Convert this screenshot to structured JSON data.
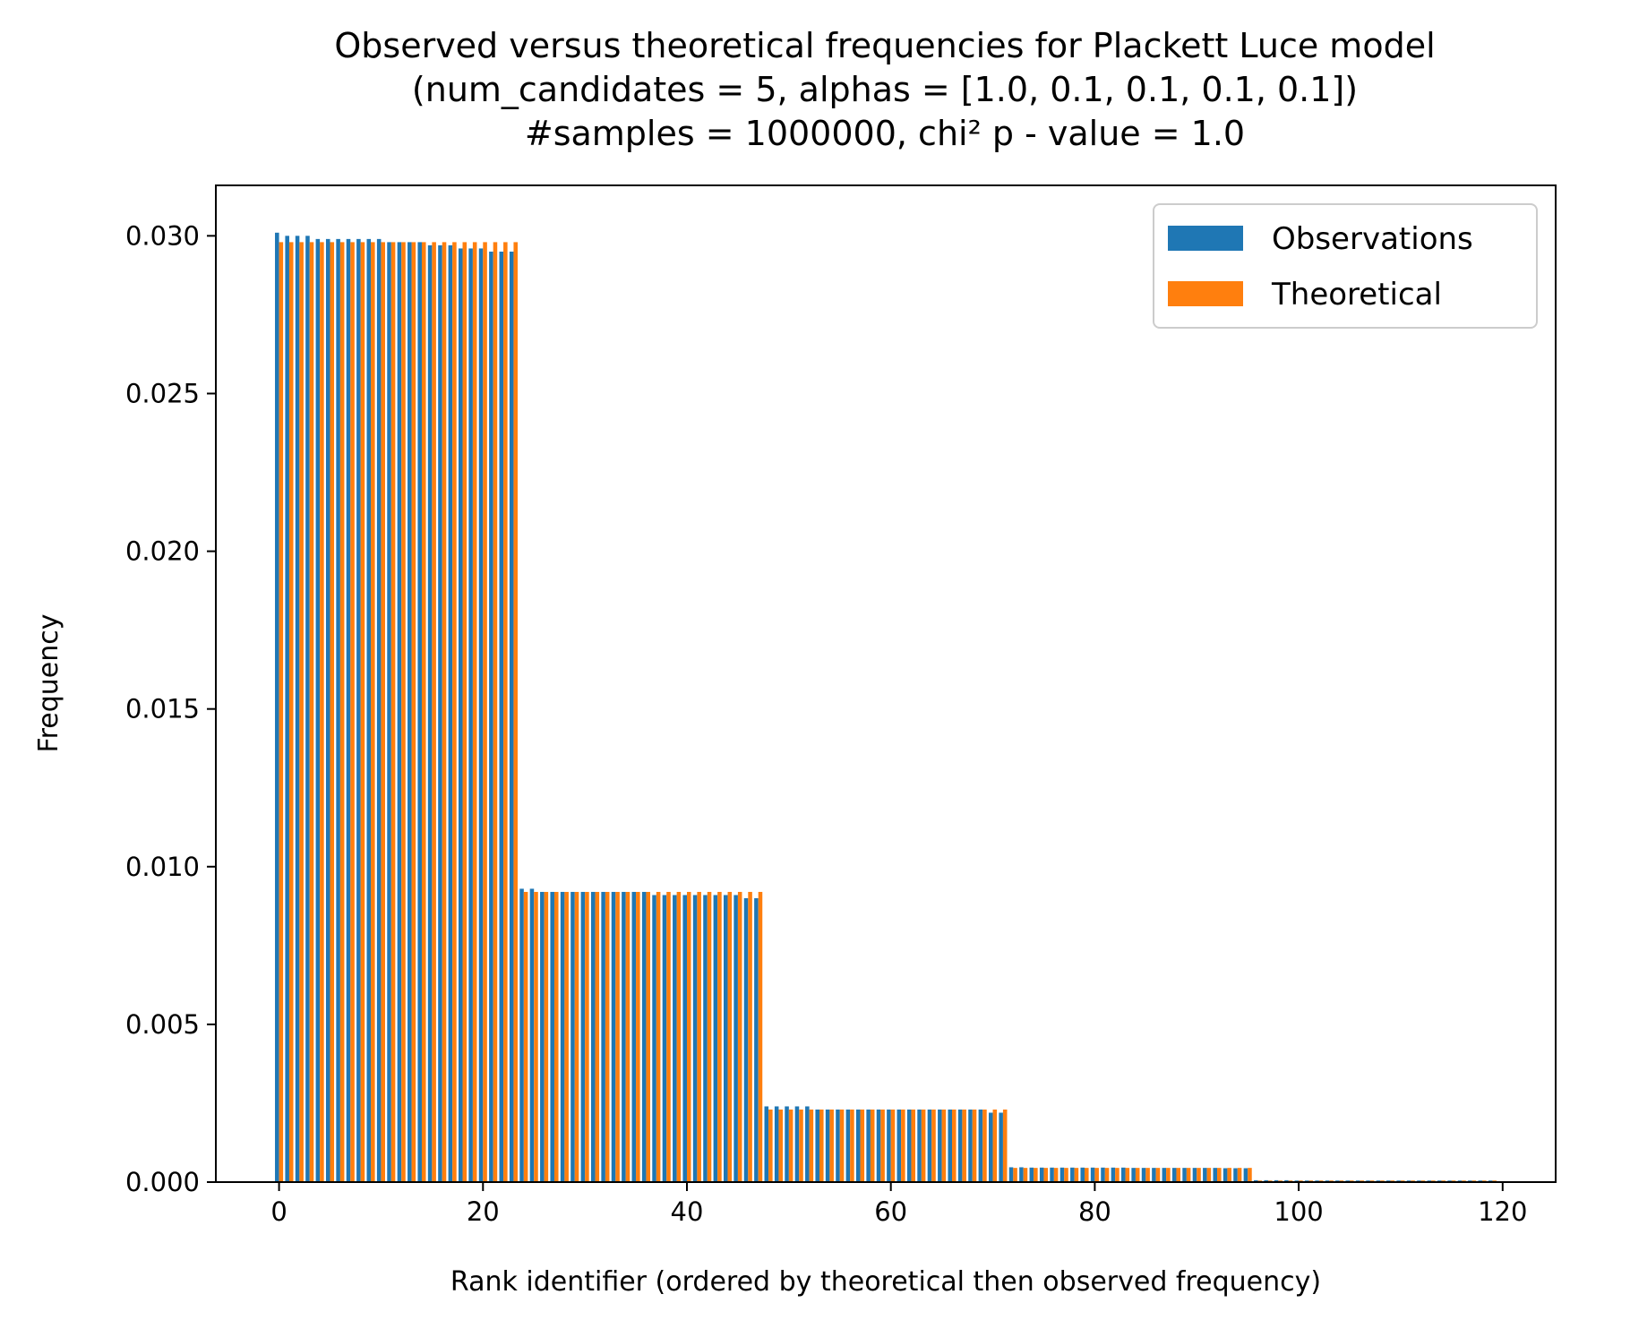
{
  "chart_data": {
    "type": "bar",
    "title_lines": [
      "Observed versus theoretical frequencies for Plackett Luce model",
      "(num_candidates = 5, alphas = [1.0, 0.1, 0.1, 0.1, 0.1])",
      "#samples = 1000000, chi² p - value = 1.0"
    ],
    "xlabel": "Rank identifier (ordered by theoretical then observed frequency)",
    "ylabel": "Frequency",
    "xlim": [
      -6.2,
      125.2
    ],
    "ylim": [
      0,
      0.0316
    ],
    "xticks": [
      0,
      20,
      40,
      60,
      80,
      100,
      120
    ],
    "xtick_labels": [
      "0",
      "20",
      "40",
      "60",
      "80",
      "100",
      "120"
    ],
    "yticks": [
      0.0,
      0.005,
      0.01,
      0.015,
      0.02,
      0.025,
      0.03
    ],
    "ytick_labels": [
      "0.000",
      "0.005",
      "0.010",
      "0.015",
      "0.020",
      "0.025",
      "0.030"
    ],
    "legend_placement": "upper-right",
    "grid": false,
    "bar_width": 0.4,
    "series": [
      {
        "name": "Observations",
        "color": "#1f77b4",
        "offset": -0.2,
        "values": [
          0.0301,
          0.03,
          0.03,
          0.03,
          0.0299,
          0.0299,
          0.0299,
          0.0299,
          0.0299,
          0.0299,
          0.0299,
          0.0298,
          0.0298,
          0.0298,
          0.0298,
          0.0297,
          0.0297,
          0.0297,
          0.0296,
          0.0296,
          0.0296,
          0.0295,
          0.0295,
          0.0295,
          0.0093,
          0.0093,
          0.0092,
          0.0092,
          0.0092,
          0.0092,
          0.0092,
          0.0092,
          0.0092,
          0.0092,
          0.0092,
          0.0092,
          0.0092,
          0.0091,
          0.0091,
          0.0091,
          0.0091,
          0.0091,
          0.0091,
          0.0091,
          0.0091,
          0.0091,
          0.009,
          0.009,
          0.0024,
          0.0024,
          0.0024,
          0.0024,
          0.0024,
          0.0023,
          0.0023,
          0.0023,
          0.0023,
          0.0023,
          0.0023,
          0.0023,
          0.0023,
          0.0023,
          0.0023,
          0.0023,
          0.0023,
          0.0023,
          0.0023,
          0.0023,
          0.0023,
          0.0023,
          0.0022,
          0.0022,
          0.00047,
          0.00047,
          0.00046,
          0.00046,
          0.00046,
          0.00046,
          0.00046,
          0.00046,
          0.00046,
          0.00046,
          0.00046,
          0.00046,
          0.00045,
          0.00045,
          0.00045,
          0.00045,
          0.00045,
          0.00045,
          0.00045,
          0.00045,
          0.00045,
          0.00044,
          0.00044,
          0.00044,
          6e-05,
          6e-05,
          6e-05,
          6e-05,
          5e-05,
          5e-05,
          5e-05,
          5e-05,
          5e-05,
          5e-05,
          5e-05,
          5e-05,
          5e-05,
          5e-05,
          5e-05,
          5e-05,
          5e-05,
          5e-05,
          5e-05,
          5e-05,
          5e-05,
          5e-05,
          5e-05,
          5e-05
        ]
      },
      {
        "name": "Theoretical",
        "color": "#ff7f0e",
        "offset": 0.2,
        "values": [
          0.0298,
          0.0298,
          0.0298,
          0.0298,
          0.0298,
          0.0298,
          0.0298,
          0.0298,
          0.0298,
          0.0298,
          0.0298,
          0.0298,
          0.0298,
          0.0298,
          0.0298,
          0.0298,
          0.0298,
          0.0298,
          0.0298,
          0.0298,
          0.0298,
          0.0298,
          0.0298,
          0.0298,
          0.0092,
          0.0092,
          0.0092,
          0.0092,
          0.0092,
          0.0092,
          0.0092,
          0.0092,
          0.0092,
          0.0092,
          0.0092,
          0.0092,
          0.0092,
          0.0092,
          0.0092,
          0.0092,
          0.0092,
          0.0092,
          0.0092,
          0.0092,
          0.0092,
          0.0092,
          0.0092,
          0.0092,
          0.0023,
          0.0023,
          0.0023,
          0.0023,
          0.0023,
          0.0023,
          0.0023,
          0.0023,
          0.0023,
          0.0023,
          0.0023,
          0.0023,
          0.0023,
          0.0023,
          0.0023,
          0.0023,
          0.0023,
          0.0023,
          0.0023,
          0.0023,
          0.0023,
          0.0023,
          0.0023,
          0.0023,
          0.00045,
          0.00045,
          0.00045,
          0.00045,
          0.00045,
          0.00045,
          0.00045,
          0.00045,
          0.00045,
          0.00045,
          0.00045,
          0.00045,
          0.00045,
          0.00045,
          0.00045,
          0.00045,
          0.00045,
          0.00045,
          0.00045,
          0.00045,
          0.00045,
          0.00045,
          0.00045,
          0.00045,
          5e-05,
          5e-05,
          5e-05,
          5e-05,
          5e-05,
          5e-05,
          5e-05,
          5e-05,
          5e-05,
          5e-05,
          5e-05,
          5e-05,
          5e-05,
          5e-05,
          5e-05,
          5e-05,
          5e-05,
          5e-05,
          5e-05,
          5e-05,
          5e-05,
          5e-05,
          5e-05,
          5e-05
        ]
      }
    ]
  }
}
